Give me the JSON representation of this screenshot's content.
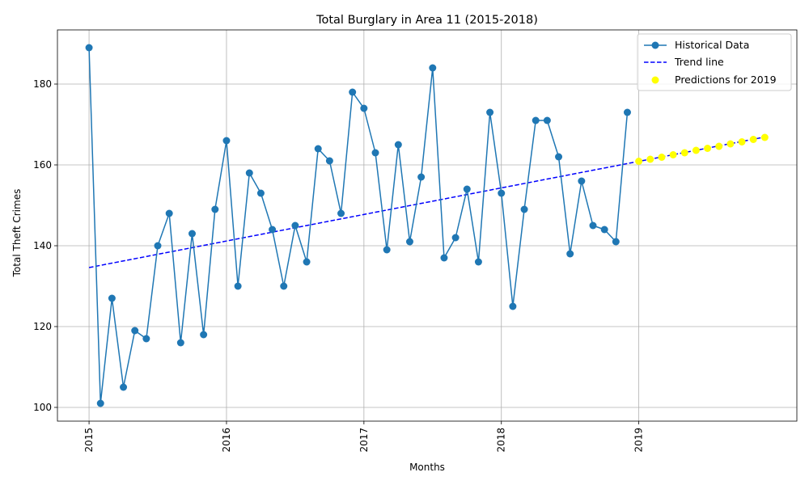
{
  "chart_data": {
    "type": "line",
    "title": "Total Burglary in Area 11 (2015-2018)",
    "xlabel": "Months",
    "ylabel": "Total Theft Crimes",
    "xlim": [
      2014.77,
      2020.15
    ],
    "ylim": [
      96.6,
      193.4
    ],
    "x_ticks": [
      2015,
      2016,
      2017,
      2018,
      2019
    ],
    "x_tick_labels": [
      "2015",
      "2016",
      "2017",
      "2018",
      "2019"
    ],
    "y_ticks": [
      100,
      120,
      140,
      160,
      180
    ],
    "y_tick_labels": [
      "100",
      "120",
      "140",
      "160",
      "180"
    ],
    "grid": true,
    "legend_position": "top-right",
    "colors": {
      "historical": "#1f77b4",
      "trend": "#0000ff",
      "predictions": "#ffff00",
      "grid": "#b0b0b0"
    },
    "series": [
      {
        "name": "Historical Data",
        "style": "line-marker",
        "start": "2015-01",
        "values": [
          189,
          101,
          127,
          105,
          119,
          117,
          140,
          148,
          116,
          143,
          118,
          149,
          166,
          130,
          158,
          153,
          144,
          130,
          145,
          136,
          164,
          161,
          148,
          178,
          174,
          163,
          139,
          165,
          141,
          157,
          184,
          137,
          142,
          154,
          136,
          173,
          153,
          125,
          149,
          171,
          171,
          162,
          138,
          156,
          145,
          144,
          141,
          173
        ]
      },
      {
        "name": "Trend line",
        "style": "dashed",
        "x": [
          2015.0,
          2019.917
        ],
        "values": [
          134.6,
          166.9
        ]
      },
      {
        "name": "Predictions for 2019",
        "style": "scatter",
        "start": "2019-01",
        "values": [
          160.9,
          161.4,
          161.9,
          162.5,
          163.0,
          163.6,
          164.1,
          164.6,
          165.2,
          165.7,
          166.3,
          166.8
        ]
      }
    ]
  }
}
